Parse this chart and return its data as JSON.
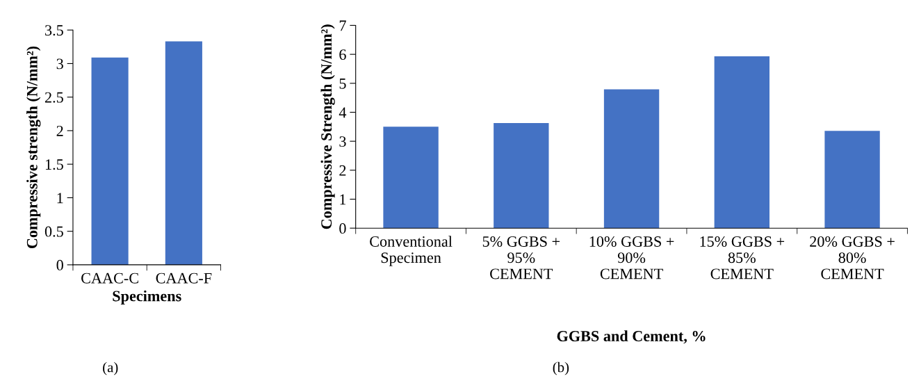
{
  "chart_data": [
    {
      "type": "bar",
      "categories": [
        "CAAC-C",
        "CAAC-F"
      ],
      "values": [
        3.09,
        3.33
      ],
      "color": "#4472c4",
      "xlabel": "Specimens",
      "ylabel": "Compressive strength (N/mm²)",
      "ylim": [
        0,
        3.5
      ],
      "yticks": [
        0,
        0.5,
        1,
        1.5,
        2,
        2.5,
        3,
        3.5
      ],
      "grid": false,
      "annotations": [
        "(a)"
      ]
    },
    {
      "type": "bar",
      "categories": [
        "Conventional\nSpecimen",
        "5% GGBS +\n95%\nCEMENT",
        "10% GGBS +\n90%\nCEMENT",
        "15% GGBS +\n85%\nCEMENT",
        "20% GGBS +\n80%\nCEMENT"
      ],
      "values": [
        3.5,
        3.63,
        4.79,
        5.93,
        3.36
      ],
      "color": "#4472c4",
      "xlabel": "GGBS and Cement, %",
      "ylabel": "Compressive Strength (N/mm²)",
      "ylim": [
        0,
        7
      ],
      "yticks": [
        0,
        1,
        2,
        3,
        4,
        5,
        6,
        7
      ],
      "grid": false,
      "annotations": [
        "(b)"
      ]
    }
  ]
}
